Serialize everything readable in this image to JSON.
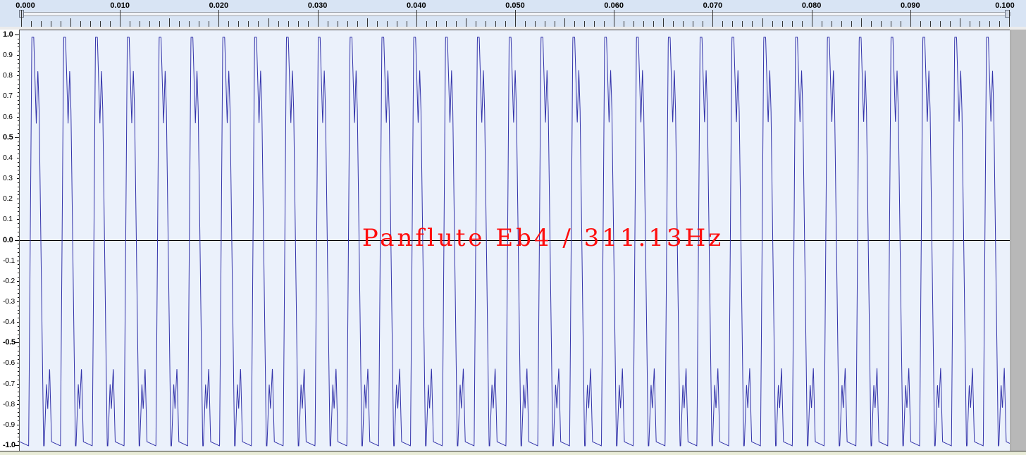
{
  "overlay_title": "Panflute Eb4 / 311.13Hz",
  "ruler": {
    "labels": [
      "0.000",
      "0.010",
      "0.020",
      "0.030",
      "0.040",
      "0.050",
      "0.060",
      "0.070",
      "0.080",
      "0.090",
      "0.100"
    ]
  },
  "amplitude_scale": {
    "labels": [
      "1.0",
      "0.9",
      "0.8",
      "0.7",
      "0.6",
      "0.5",
      "0.4",
      "0.3",
      "0.2",
      "0.1",
      "0.0",
      "-0.1",
      "-0.2",
      "-0.3",
      "-0.4",
      "-0.5",
      "-0.6",
      "-0.7",
      "-0.8",
      "-0.9",
      "-1.0"
    ]
  },
  "waveform": {
    "frequency_hz": 311.13,
    "time_range_s": [
      0.0,
      0.1
    ],
    "amplitude_range": [
      -1.0,
      1.0
    ],
    "color": "#3333aa",
    "zero_line_color": "#000000",
    "background": "#ebf1fb"
  },
  "colors": {
    "overlay_text": "#ff0d0d",
    "ruler_bg": "#d8e4f4"
  }
}
